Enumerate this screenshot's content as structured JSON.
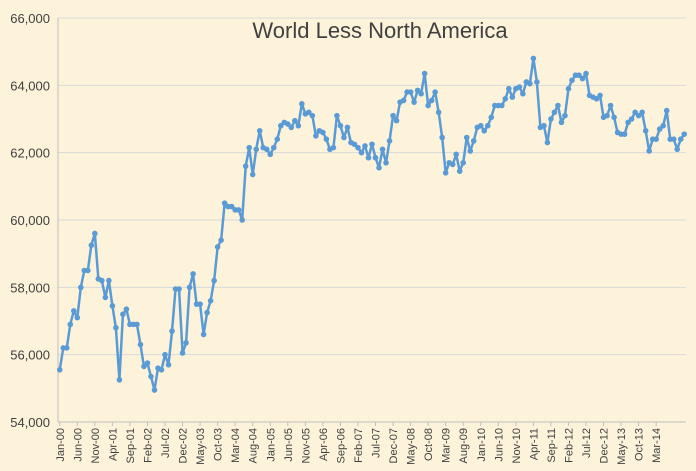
{
  "chart_data": {
    "type": "line",
    "title": "World Less North America",
    "xlabel": "",
    "ylabel": "",
    "ylim": [
      54000,
      66000
    ],
    "yticks": [
      54000,
      56000,
      58000,
      60000,
      62000,
      64000,
      66000
    ],
    "ytick_labels": [
      "54,000",
      "56,000",
      "58,000",
      "60,000",
      "62,000",
      "64,000",
      "66,000"
    ],
    "xtick_labels": [
      "Jan-00",
      "Jun-00",
      "Nov-00",
      "Apr-01",
      "Sep-01",
      "Feb-02",
      "Jul-02",
      "Dec-02",
      "May-03",
      "Oct-03",
      "Mar-04",
      "Aug-04",
      "Jan-05",
      "Jun-05",
      "Nov-05",
      "Apr-06",
      "Sep-06",
      "Feb-07",
      "Jul-07",
      "Dec-07",
      "May-08",
      "Oct-08",
      "Mar-09",
      "Aug-09",
      "Jan-10",
      "Jun-10",
      "Nov-10",
      "Apr-11",
      "Sep-11",
      "Feb-12",
      "Jul-12",
      "Dec-12",
      "May-13",
      "Oct-13",
      "Mar-14"
    ],
    "grid": true,
    "legend": "none",
    "line_color": "#5b9bd5",
    "series": [
      {
        "x_start": "Jan-00",
        "frequency": "monthly",
        "values": [
          55550,
          56200,
          56200,
          56900,
          57300,
          57100,
          58000,
          58500,
          58500,
          59250,
          59600,
          58250,
          58200,
          57700,
          58200,
          57450,
          56800,
          55250,
          57200,
          57350,
          56900,
          56900,
          56900,
          56300,
          55650,
          55750,
          55350,
          54950,
          55600,
          55550,
          56000,
          55700,
          56700,
          57950,
          57950,
          56050,
          56350,
          58000,
          58400,
          57500,
          57500,
          56600,
          57250,
          57600,
          58200,
          59200,
          59400,
          60500,
          60400,
          60400,
          60300,
          60300,
          60000,
          61600,
          62150,
          61350,
          62100,
          62650,
          62150,
          62100,
          61950,
          62150,
          62400,
          62800,
          62900,
          62850,
          62750,
          62950,
          62800,
          63450,
          63150,
          63200,
          63100,
          62500,
          62650,
          62600,
          62400,
          62100,
          62150,
          63100,
          62800,
          62450,
          62750,
          62300,
          62250,
          62150,
          62000,
          62200,
          61850,
          62250,
          61850,
          61550,
          62100,
          61700,
          62350,
          63100,
          62950,
          63500,
          63550,
          63800,
          63800,
          63500,
          63850,
          63750,
          64350,
          63400,
          63550,
          63800,
          63200,
          62450,
          61400,
          61700,
          61650,
          61950,
          61450,
          61700,
          62450,
          62050,
          62350,
          62750,
          62800,
          62650,
          62800,
          63050,
          63400,
          63400,
          63400,
          63600,
          63900,
          63650,
          63900,
          63950,
          63750,
          64100,
          64050,
          64800,
          64100,
          62750,
          62800,
          62300,
          63000,
          63200,
          63400,
          62900,
          63100,
          63900,
          64150,
          64300,
          64300,
          64200,
          64350,
          63700,
          63650,
          63600,
          63700,
          63050,
          63100,
          63400,
          63050,
          62600,
          62550,
          62550,
          62900,
          63000,
          63200,
          63100,
          63200,
          62650,
          62050,
          62400,
          62400,
          62700,
          62800,
          63250,
          62400,
          62400,
          62100,
          62400,
          62550
        ]
      }
    ]
  }
}
